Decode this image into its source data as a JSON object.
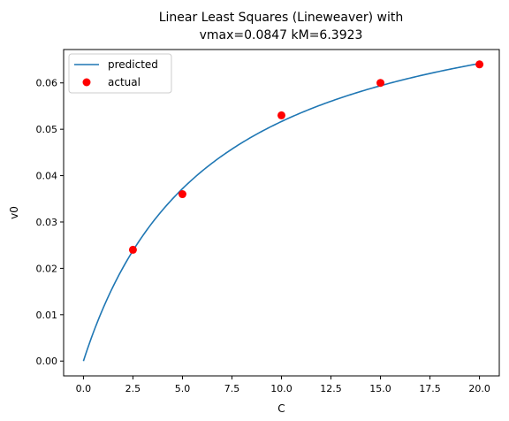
{
  "chart_data": {
    "type": "scatter",
    "title_lines": [
      "Linear Least Squares (Lineweaver) with",
      "vmax=0.0847 kM=6.3923"
    ],
    "xlabel": "C",
    "ylabel": "v0",
    "xlim": [
      -1.0,
      21.0
    ],
    "ylim": [
      -0.0032,
      0.0672
    ],
    "x_ticks": [
      0.0,
      2.5,
      5.0,
      7.5,
      10.0,
      12.5,
      15.0,
      17.5,
      20.0
    ],
    "x_tick_labels": [
      "0.0",
      "2.5",
      "5.0",
      "7.5",
      "10.0",
      "12.5",
      "15.0",
      "17.5",
      "20.0"
    ],
    "y_ticks": [
      0.0,
      0.01,
      0.02,
      0.03,
      0.04,
      0.05,
      0.06
    ],
    "y_tick_labels": [
      "0.00",
      "0.01",
      "0.02",
      "0.03",
      "0.04",
      "0.05",
      "0.06"
    ],
    "grid": false,
    "legend_position": "top-left",
    "series": [
      {
        "name": "predicted",
        "kind": "line",
        "color": "#1f77b4",
        "model": "michaelis-menten",
        "vmax": 0.0847,
        "kM": 6.3923,
        "x_range": [
          0,
          20
        ]
      },
      {
        "name": "actual",
        "kind": "scatter",
        "color": "#ff0000",
        "x": [
          2.5,
          5.0,
          10.0,
          15.0,
          20.0
        ],
        "y": [
          0.024,
          0.036,
          0.053,
          0.06,
          0.064
        ]
      }
    ]
  }
}
